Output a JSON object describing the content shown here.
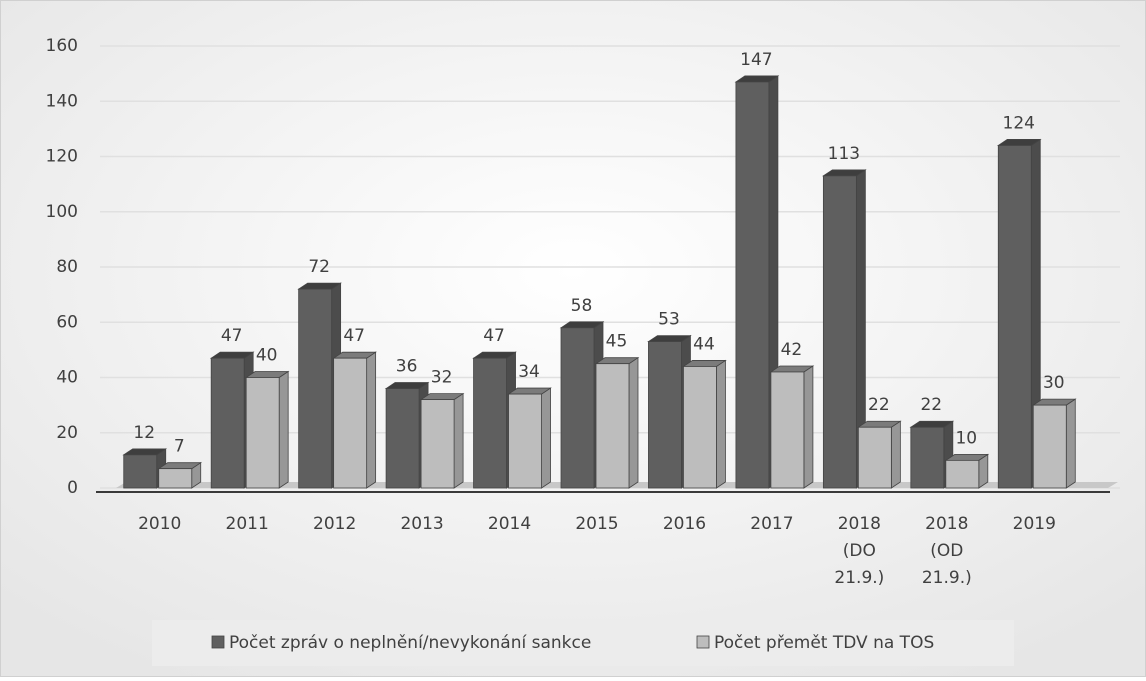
{
  "chart_data": {
    "type": "bar3d",
    "categories": [
      "2010",
      "2011",
      "2012",
      "2013",
      "2014",
      "2015",
      "2016",
      "2017",
      "2018 (DO 21.9.)",
      "2018 (OD 21.9.)",
      "2019"
    ],
    "series": [
      {
        "name": "Počet zpráv o neplnění/nevykonání sankce",
        "color": "#5f5f5f",
        "values": [
          12,
          47,
          72,
          36,
          47,
          58,
          53,
          147,
          113,
          22,
          124
        ]
      },
      {
        "name": "Počet přemět TDV na TOS",
        "color": "#bdbdbd",
        "values": [
          7,
          40,
          47,
          32,
          34,
          45,
          44,
          42,
          22,
          10,
          30
        ]
      }
    ],
    "ylim": [
      0,
      160
    ],
    "yticks": [
      0,
      20,
      40,
      60,
      80,
      100,
      120,
      140,
      160
    ],
    "grid": true,
    "legend": "bottom"
  }
}
